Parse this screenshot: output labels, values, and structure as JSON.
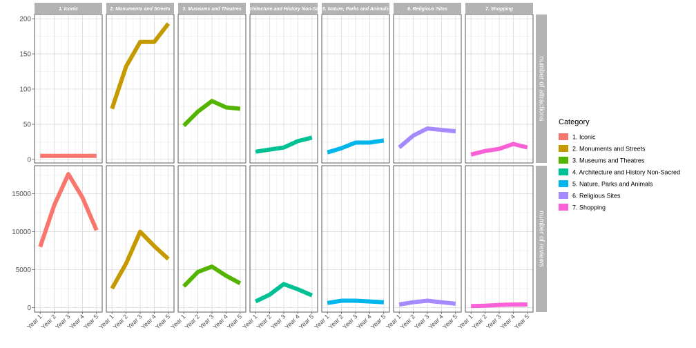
{
  "chart_data": {
    "type": "line",
    "x": [
      "Year 1",
      "Year 2",
      "Year 3",
      "Year 4",
      "Year 5"
    ],
    "facets": [
      {
        "label": "1. Iconic",
        "color": "#F8766D"
      },
      {
        "label": "2. Monuments and Streets",
        "color": "#C49A00"
      },
      {
        "label": "3. Museums and Theatres",
        "color": "#53B400"
      },
      {
        "label": "4. Architecture and History Non-Sacred",
        "color": "#00C094"
      },
      {
        "label": "5. Nature, Parks and Animals",
        "color": "#00B6EB"
      },
      {
        "label": "6. Religious Sites",
        "color": "#A58AFF"
      },
      {
        "label": "7. Shopping",
        "color": "#FB61D7"
      }
    ],
    "rows": [
      {
        "label": "number of attractions",
        "ylim": [
          -5,
          206
        ],
        "yticks": [
          0,
          50,
          100,
          150,
          200
        ],
        "series": [
          [
            5,
            5,
            5,
            5,
            5
          ],
          [
            72,
            132,
            167,
            167,
            193
          ],
          [
            48,
            68,
            83,
            74,
            72
          ],
          [
            11,
            14,
            17,
            26,
            31
          ],
          [
            10,
            16,
            24,
            24,
            27
          ],
          [
            17,
            34,
            44,
            42,
            40
          ],
          [
            7,
            12,
            15,
            22,
            17
          ]
        ]
      },
      {
        "label": "number of reviews",
        "ylim": [
          -600,
          18700
        ],
        "yticks": [
          0,
          5000,
          10000,
          15000
        ],
        "ytick_labels": [
          "0",
          "5000",
          "10000",
          "15000"
        ],
        "series": [
          [
            8000,
            13500,
            17600,
            14500,
            10200
          ],
          [
            2500,
            5800,
            10000,
            8100,
            6400
          ],
          [
            2800,
            4700,
            5400,
            4200,
            3200
          ],
          [
            800,
            1700,
            3100,
            2400,
            1600
          ],
          [
            600,
            900,
            900,
            800,
            700
          ],
          [
            400,
            700,
            900,
            700,
            500
          ],
          [
            200,
            250,
            350,
            400,
            400
          ]
        ]
      }
    ],
    "legend": {
      "title": "Category",
      "position": "right"
    },
    "grid": true
  }
}
